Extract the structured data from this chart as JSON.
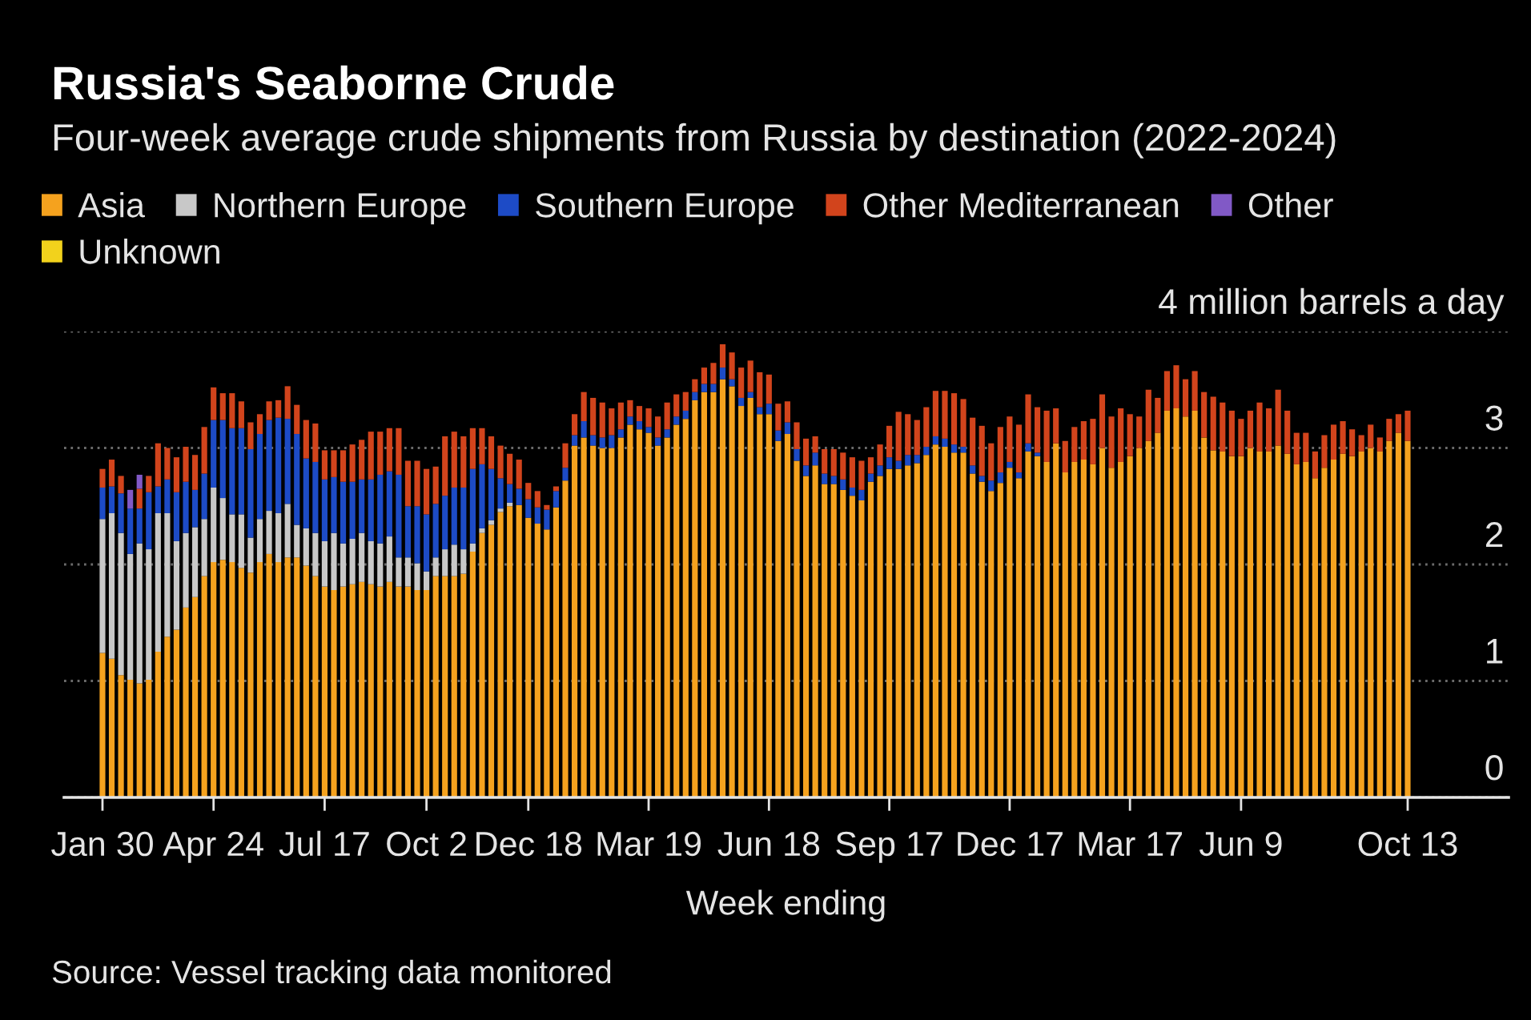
{
  "chart_data": {
    "type": "bar",
    "stacked": true,
    "title": "Russia's Seaborne Crude",
    "subtitle": "Four-week average crude shipments from Russia by destination (2022-2024)",
    "xlabel": "Week ending",
    "annotations": [
      "Source: Vessel tracking data monitored"
    ],
    "legend": "top left",
    "grid": "y",
    "ylim": [
      0,
      4
    ],
    "yticks": [
      0,
      1,
      2,
      3,
      {
        "value": 4,
        "label": "4 million barrels a day"
      }
    ],
    "categories": [
      "Jan 30",
      null,
      null,
      null,
      null,
      null,
      null,
      null,
      null,
      null,
      null,
      null,
      "Apr 24",
      null,
      null,
      null,
      null,
      null,
      null,
      null,
      null,
      null,
      null,
      null,
      "Jul 17",
      null,
      null,
      null,
      null,
      null,
      null,
      null,
      null,
      null,
      null,
      "Oct 2",
      null,
      null,
      null,
      null,
      null,
      null,
      null,
      null,
      null,
      null,
      "Dec 18",
      null,
      null,
      null,
      null,
      null,
      null,
      null,
      null,
      null,
      null,
      null,
      null,
      "Mar 19",
      null,
      null,
      null,
      null,
      null,
      null,
      null,
      null,
      null,
      null,
      null,
      null,
      "Jun 18",
      null,
      null,
      null,
      null,
      null,
      null,
      null,
      null,
      null,
      null,
      null,
      null,
      "Sep 17",
      null,
      null,
      null,
      null,
      null,
      null,
      null,
      null,
      null,
      null,
      null,
      null,
      "Dec 17",
      null,
      null,
      null,
      null,
      null,
      null,
      null,
      null,
      null,
      null,
      null,
      null,
      "Mar 17",
      null,
      null,
      null,
      null,
      null,
      null,
      null,
      null,
      null,
      null,
      null,
      "Jun 9",
      null,
      null,
      null,
      null,
      null,
      null,
      null,
      null,
      null,
      null,
      null,
      null,
      null,
      null,
      null,
      null,
      null,
      "Oct 13"
    ],
    "series": [
      {
        "name": "Asia",
        "color": "#f5a21e",
        "values": [
          1.24,
          1.19,
          1.05,
          1.01,
          0.98,
          1.01,
          1.25,
          1.38,
          1.44,
          1.63,
          1.72,
          1.9,
          2.02,
          2.04,
          2.02,
          1.97,
          1.93,
          2.02,
          2.09,
          2.02,
          2.06,
          2.06,
          1.99,
          1.9,
          1.81,
          1.78,
          1.81,
          1.83,
          1.85,
          1.83,
          1.81,
          1.85,
          1.81,
          1.81,
          1.78,
          1.78,
          1.9,
          1.9,
          1.9,
          1.92,
          2.11,
          2.27,
          2.34,
          2.45,
          2.5,
          2.51,
          2.4,
          2.35,
          2.3,
          2.49,
          2.72,
          3.02,
          3.09,
          3.02,
          3.0,
          3.0,
          3.09,
          3.2,
          3.16,
          3.13,
          3.02,
          3.09,
          3.2,
          3.25,
          3.41,
          3.48,
          3.48,
          3.59,
          3.53,
          3.36,
          3.43,
          3.29,
          3.29,
          3.06,
          3.12,
          2.89,
          2.76,
          2.85,
          2.69,
          2.69,
          2.64,
          2.59,
          2.55,
          2.71,
          2.76,
          2.82,
          2.82,
          2.85,
          2.87,
          2.94,
          3.03,
          3.01,
          2.96,
          2.96,
          2.78,
          2.71,
          2.63,
          2.7,
          2.83,
          2.74,
          2.97,
          2.93,
          2.88,
          3.04,
          2.79,
          2.88,
          2.9,
          2.86,
          3.0,
          2.83,
          2.88,
          2.93,
          3.0,
          3.06,
          3.13,
          3.32,
          3.34,
          3.27,
          3.32,
          3.09,
          2.98,
          2.97,
          2.93,
          2.93,
          3.0,
          2.97,
          2.97,
          3.02,
          2.95,
          2.86,
          2.88,
          2.74,
          2.83,
          2.9,
          2.95,
          2.93,
          2.97,
          3.0,
          2.97,
          3.06,
          3.13,
          3.06
        ]
      },
      {
        "name": "Northern Europe",
        "color": "#c8c8c8",
        "values": [
          1.15,
          1.25,
          1.22,
          1.08,
          1.2,
          1.12,
          1.19,
          1.06,
          0.76,
          0.64,
          0.6,
          0.49,
          0.64,
          0.53,
          0.41,
          0.46,
          0.3,
          0.37,
          0.37,
          0.42,
          0.46,
          0.28,
          0.32,
          0.37,
          0.39,
          0.49,
          0.37,
          0.39,
          0.42,
          0.37,
          0.37,
          0.39,
          0.25,
          0.25,
          0.23,
          0.16,
          0.16,
          0.23,
          0.27,
          0.21,
          0.07,
          0.04,
          0.04,
          0.03,
          0.03,
          null,
          null,
          null,
          null,
          null,
          null,
          null,
          null,
          null,
          null,
          null,
          null,
          null,
          null,
          null,
          null,
          null,
          null,
          null,
          null,
          null,
          null,
          null,
          null,
          null,
          null,
          null,
          null,
          null,
          null,
          null,
          null,
          null,
          null,
          null,
          null,
          null,
          null,
          null,
          null,
          null,
          null,
          null,
          null,
          null,
          null,
          null,
          null,
          null,
          null,
          null,
          null,
          null,
          null,
          null,
          null,
          null,
          null,
          null,
          null,
          null,
          null,
          null,
          null,
          null,
          null,
          null,
          null,
          null,
          null,
          null,
          null,
          null,
          null,
          null,
          null,
          null,
          null,
          null,
          null,
          null,
          null,
          null,
          null,
          null,
          null,
          null,
          null,
          null,
          null,
          null,
          null,
          null,
          null,
          null,
          null,
          null
        ]
      },
      {
        "name": "Southern Europe",
        "color": "#1d4bc6",
        "values": [
          0.27,
          0.23,
          0.34,
          0.39,
          0.3,
          0.49,
          0.23,
          0.29,
          0.42,
          0.44,
          0.32,
          0.39,
          0.58,
          0.67,
          0.74,
          0.74,
          0.76,
          0.73,
          0.78,
          0.82,
          0.73,
          0.78,
          0.6,
          0.61,
          0.53,
          0.48,
          0.53,
          0.49,
          0.46,
          0.53,
          0.59,
          0.56,
          0.71,
          0.44,
          0.49,
          0.49,
          0.46,
          0.46,
          0.49,
          0.53,
          0.64,
          0.55,
          0.44,
          0.26,
          0.16,
          0.14,
          0.16,
          0.14,
          0.17,
          0.14,
          0.11,
          0.09,
          0.14,
          0.09,
          0.09,
          0.11,
          0.07,
          0.07,
          0.07,
          0.05,
          0.07,
          0.07,
          0.07,
          0.07,
          0.07,
          0.07,
          0.07,
          0.1,
          0.06,
          0.07,
          0.05,
          0.06,
          0.09,
          0.09,
          0.1,
          0.1,
          0.09,
          0.11,
          0.09,
          0.07,
          0.09,
          0.07,
          0.09,
          0.07,
          0.09,
          0.1,
          0.07,
          0.09,
          0.07,
          0.07,
          0.07,
          0.07,
          0.07,
          0.05,
          0.07,
          0.05,
          0.09,
          0.09,
          0.05,
          0.05,
          0.07,
          0.03,
          null,
          null,
          null,
          null,
          null,
          null,
          null,
          null,
          null,
          null,
          null,
          null,
          null,
          null,
          null,
          null,
          null,
          null,
          null,
          null,
          null,
          null,
          null,
          null,
          null,
          null,
          null,
          null,
          null,
          null,
          null,
          null,
          null,
          null,
          null,
          null,
          null,
          null,
          null,
          null
        ]
      },
      {
        "name": "Other Mediterranean",
        "color": "#d2441c",
        "values": [
          0.16,
          0.23,
          0.15,
          null,
          0.17,
          0.14,
          0.37,
          0.27,
          0.3,
          0.3,
          0.3,
          0.4,
          0.28,
          0.23,
          0.3,
          0.23,
          0.23,
          0.17,
          0.16,
          0.15,
          0.28,
          0.25,
          0.33,
          0.33,
          0.25,
          0.23,
          0.27,
          0.32,
          0.34,
          0.41,
          0.37,
          0.37,
          0.4,
          0.39,
          0.39,
          0.39,
          0.32,
          0.51,
          0.48,
          0.44,
          0.35,
          0.31,
          0.28,
          0.28,
          0.26,
          0.25,
          0.14,
          0.14,
          0.04,
          0.04,
          0.21,
          0.18,
          0.25,
          0.32,
          0.3,
          0.23,
          0.23,
          0.14,
          0.13,
          0.16,
          0.18,
          0.23,
          0.19,
          0.16,
          0.11,
          0.14,
          0.18,
          0.2,
          0.23,
          0.26,
          0.27,
          0.3,
          0.25,
          0.23,
          0.18,
          0.23,
          0.23,
          0.14,
          0.21,
          0.23,
          0.23,
          0.26,
          0.25,
          0.14,
          0.18,
          0.27,
          0.42,
          0.35,
          0.3,
          0.34,
          0.39,
          0.41,
          0.44,
          0.41,
          0.41,
          0.43,
          0.32,
          0.39,
          0.39,
          0.41,
          0.42,
          0.39,
          0.44,
          0.3,
          0.27,
          0.3,
          0.33,
          0.39,
          0.46,
          0.44,
          0.46,
          0.36,
          0.27,
          0.44,
          0.3,
          0.34,
          0.37,
          0.32,
          0.34,
          0.39,
          0.46,
          0.42,
          0.39,
          0.32,
          0.32,
          0.42,
          0.37,
          0.48,
          0.37,
          0.27,
          0.25,
          0.23,
          0.28,
          0.3,
          0.28,
          0.23,
          0.14,
          0.2,
          0.12,
          0.19,
          0.16,
          0.26
        ]
      },
      {
        "name": "Other",
        "color": "#8159c6",
        "values": [
          null,
          null,
          null,
          0.16,
          0.12,
          null,
          null,
          null,
          null,
          null,
          null,
          null,
          null,
          null,
          null,
          null,
          null,
          null,
          null,
          null,
          null,
          null,
          null,
          null,
          null,
          null,
          null,
          null,
          null,
          null,
          null,
          null,
          null,
          null,
          null,
          null,
          null,
          null,
          null,
          null,
          null,
          null,
          null,
          null,
          null,
          null,
          null,
          null,
          null,
          null,
          null,
          null,
          null,
          null,
          null,
          null,
          null,
          null,
          null,
          null,
          null,
          null,
          null,
          null,
          null,
          null,
          null,
          null,
          null,
          null,
          null,
          null,
          null,
          null,
          null,
          null,
          null,
          null,
          null,
          null,
          null,
          null,
          null,
          null,
          null,
          null,
          null,
          null,
          null,
          null,
          null,
          null,
          null,
          null,
          null,
          null,
          null,
          null,
          null,
          null,
          null,
          null,
          null,
          null,
          null,
          null,
          null,
          null,
          null,
          null,
          null,
          null,
          null,
          null,
          null,
          null,
          null,
          null,
          null,
          null,
          null,
          null,
          null,
          null,
          null,
          null,
          null,
          null,
          null,
          null,
          null,
          null,
          null,
          null,
          null,
          null,
          null,
          null,
          null,
          null,
          null,
          null
        ]
      },
      {
        "name": "Unknown",
        "color": "#f2d21c",
        "values": [
          null,
          null,
          null,
          null,
          null,
          null,
          null,
          null,
          null,
          null,
          null,
          null,
          null,
          null,
          null,
          null,
          null,
          null,
          null,
          null,
          null,
          null,
          null,
          null,
          null,
          null,
          null,
          null,
          null,
          null,
          null,
          null,
          null,
          null,
          null,
          null,
          null,
          null,
          null,
          null,
          null,
          null,
          null,
          null,
          null,
          null,
          null,
          null,
          null,
          null,
          null,
          null,
          null,
          null,
          null,
          null,
          null,
          null,
          null,
          null,
          null,
          null,
          null,
          null,
          null,
          null,
          null,
          null,
          null,
          null,
          null,
          null,
          null,
          null,
          null,
          null,
          null,
          null,
          null,
          null,
          null,
          null,
          null,
          null,
          null,
          null,
          null,
          null,
          null,
          null,
          null,
          null,
          null,
          null,
          null,
          null,
          null,
          null,
          null,
          null,
          null,
          null,
          null,
          null,
          null,
          null,
          null,
          null,
          null,
          null,
          null,
          null,
          null,
          null,
          null,
          null,
          null,
          null,
          null,
          null,
          null,
          null,
          null,
          null,
          null,
          null,
          null,
          null,
          null,
          null,
          null,
          null,
          null,
          null,
          null,
          null,
          null,
          null,
          null,
          null,
          null,
          null
        ]
      }
    ]
  }
}
